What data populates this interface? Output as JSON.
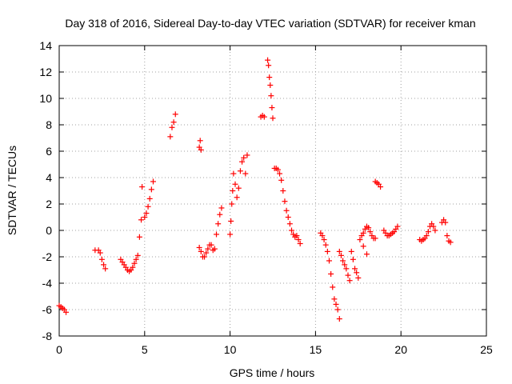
{
  "chart_data": {
    "type": "scatter",
    "title": "Day 318 of 2016, Sidereal Day-to-day VTEC variation (SDTVAR) for receiver kman",
    "xlabel": "GPS time / hours",
    "ylabel": "SDTVAR / TECUs",
    "xlim": [
      0,
      25
    ],
    "ylim": [
      -8,
      14
    ],
    "xticks": [
      0,
      5,
      10,
      15,
      20,
      25
    ],
    "yticks": [
      -8,
      -6,
      -4,
      -2,
      0,
      2,
      4,
      6,
      8,
      10,
      12,
      14
    ],
    "xtick_labels": [
      "0",
      "5",
      "10",
      "15",
      "20",
      "25"
    ],
    "ytick_labels": [
      "-8",
      "-6",
      "-4",
      "-2",
      "0",
      "2",
      "4",
      "6",
      "8",
      "10",
      "12",
      "14"
    ],
    "grid": true,
    "marker": "+",
    "marker_color": "#ff0000",
    "series": [
      {
        "name": "SDTVAR",
        "segments": [
          [
            [
              0.0,
              -5.7
            ],
            [
              0.1,
              -5.8
            ],
            [
              0.2,
              -5.9
            ],
            [
              0.3,
              -6.0
            ],
            [
              0.4,
              -6.2
            ]
          ],
          [
            [
              2.1,
              -1.5
            ],
            [
              2.3,
              -1.5
            ],
            [
              2.4,
              -1.7
            ],
            [
              2.5,
              -2.2
            ],
            [
              2.6,
              -2.6
            ],
            [
              2.7,
              -2.9
            ]
          ],
          [
            [
              3.6,
              -2.2
            ],
            [
              3.7,
              -2.4
            ],
            [
              3.8,
              -2.6
            ],
            [
              3.9,
              -2.8
            ],
            [
              4.0,
              -3.0
            ],
            [
              4.1,
              -3.1
            ],
            [
              4.2,
              -3.0
            ],
            [
              4.3,
              -2.8
            ],
            [
              4.4,
              -2.5
            ],
            [
              4.5,
              -2.2
            ],
            [
              4.6,
              -1.9
            ],
            [
              4.7,
              -0.5
            ],
            [
              4.8,
              0.8
            ],
            [
              4.85,
              3.3
            ]
          ],
          [
            [
              5.0,
              1.0
            ],
            [
              5.1,
              1.3
            ],
            [
              5.2,
              1.8
            ],
            [
              5.3,
              2.4
            ],
            [
              5.4,
              3.1
            ],
            [
              5.5,
              3.7
            ]
          ],
          [
            [
              6.5,
              7.1
            ],
            [
              6.6,
              7.8
            ],
            [
              6.7,
              8.2
            ],
            [
              6.8,
              8.8
            ]
          ],
          [
            [
              8.2,
              6.3
            ],
            [
              8.25,
              6.8
            ],
            [
              8.3,
              6.1
            ]
          ],
          [
            [
              8.2,
              -1.3
            ],
            [
              8.3,
              -1.6
            ],
            [
              8.4,
              -2.0
            ],
            [
              8.5,
              -2.0
            ],
            [
              8.6,
              -1.7
            ],
            [
              8.7,
              -1.4
            ],
            [
              8.8,
              -1.1
            ],
            [
              8.9,
              -1.1
            ],
            [
              9.0,
              -1.5
            ],
            [
              9.1,
              -1.4
            ],
            [
              9.2,
              -0.3
            ],
            [
              9.3,
              0.5
            ],
            [
              9.4,
              1.2
            ],
            [
              9.5,
              1.7
            ]
          ],
          [
            [
              10.0,
              -0.3
            ],
            [
              10.05,
              0.7
            ],
            [
              10.1,
              2.0
            ],
            [
              10.15,
              3.0
            ],
            [
              10.2,
              4.3
            ],
            [
              10.3,
              3.5
            ],
            [
              10.4,
              2.5
            ],
            [
              10.5,
              3.2
            ],
            [
              10.6,
              4.5
            ],
            [
              10.7,
              5.2
            ],
            [
              10.8,
              5.5
            ],
            [
              10.9,
              4.3
            ],
            [
              11.0,
              5.7
            ]
          ],
          [
            [
              11.8,
              8.6
            ],
            [
              11.9,
              8.7
            ],
            [
              12.0,
              8.6
            ]
          ],
          [
            [
              12.2,
              12.9
            ],
            [
              12.25,
              12.5
            ],
            [
              12.3,
              11.6
            ],
            [
              12.35,
              11.0
            ],
            [
              12.4,
              10.2
            ],
            [
              12.45,
              9.3
            ],
            [
              12.5,
              8.5
            ]
          ],
          [
            [
              12.6,
              4.7
            ],
            [
              12.7,
              4.7
            ],
            [
              12.8,
              4.6
            ],
            [
              12.9,
              4.3
            ],
            [
              13.0,
              3.8
            ],
            [
              13.1,
              3.0
            ],
            [
              13.2,
              2.2
            ],
            [
              13.3,
              1.5
            ],
            [
              13.4,
              1.0
            ],
            [
              13.5,
              0.5
            ],
            [
              13.6,
              0.0
            ],
            [
              13.7,
              -0.3
            ],
            [
              13.8,
              -0.5
            ],
            [
              13.9,
              -0.4
            ],
            [
              14.0,
              -0.7
            ],
            [
              14.1,
              -1.0
            ]
          ],
          [
            [
              15.3,
              -0.2
            ],
            [
              15.4,
              -0.4
            ],
            [
              15.5,
              -0.7
            ],
            [
              15.6,
              -1.1
            ],
            [
              15.7,
              -1.6
            ],
            [
              15.8,
              -2.3
            ],
            [
              15.9,
              -3.3
            ],
            [
              16.0,
              -4.3
            ],
            [
              16.1,
              -5.2
            ],
            [
              16.2,
              -5.6
            ],
            [
              16.3,
              -6.0
            ],
            [
              16.4,
              -6.7
            ]
          ],
          [
            [
              16.4,
              -1.6
            ],
            [
              16.5,
              -1.9
            ],
            [
              16.6,
              -2.3
            ],
            [
              16.7,
              -2.6
            ],
            [
              16.8,
              -2.9
            ],
            [
              16.9,
              -3.4
            ],
            [
              17.0,
              -3.8
            ],
            [
              17.1,
              -1.6
            ],
            [
              17.2,
              -2.2
            ],
            [
              17.3,
              -2.9
            ],
            [
              17.4,
              -3.2
            ],
            [
              17.5,
              -3.6
            ]
          ],
          [
            [
              17.6,
              -0.7
            ],
            [
              17.7,
              -0.4
            ],
            [
              17.8,
              -0.2
            ],
            [
              17.9,
              0.1
            ],
            [
              18.0,
              0.3
            ],
            [
              18.1,
              0.2
            ],
            [
              18.2,
              -0.1
            ],
            [
              18.3,
              -0.4
            ],
            [
              18.4,
              -0.6
            ],
            [
              18.5,
              -0.6
            ],
            [
              17.8,
              -1.2
            ],
            [
              18.0,
              -1.8
            ]
          ],
          [
            [
              18.5,
              3.7
            ],
            [
              18.6,
              3.6
            ],
            [
              18.7,
              3.5
            ],
            [
              18.8,
              3.3
            ]
          ],
          [
            [
              19.0,
              0.0
            ],
            [
              19.1,
              -0.2
            ],
            [
              19.2,
              -0.4
            ],
            [
              19.3,
              -0.4
            ],
            [
              19.4,
              -0.3
            ],
            [
              19.5,
              -0.2
            ],
            [
              19.6,
              -0.1
            ],
            [
              19.7,
              0.1
            ],
            [
              19.8,
              0.3
            ]
          ],
          [
            [
              21.1,
              -0.7
            ],
            [
              21.2,
              -0.8
            ],
            [
              21.3,
              -0.7
            ],
            [
              21.4,
              -0.6
            ],
            [
              21.5,
              -0.4
            ],
            [
              21.6,
              -0.1
            ],
            [
              21.7,
              0.3
            ],
            [
              21.8,
              0.5
            ],
            [
              21.9,
              0.3
            ],
            [
              22.0,
              0.0
            ]
          ],
          [
            [
              22.4,
              0.6
            ],
            [
              22.5,
              0.8
            ],
            [
              22.6,
              0.6
            ],
            [
              22.7,
              -0.4
            ],
            [
              22.8,
              -0.8
            ],
            [
              22.9,
              -0.9
            ]
          ]
        ]
      }
    ]
  }
}
